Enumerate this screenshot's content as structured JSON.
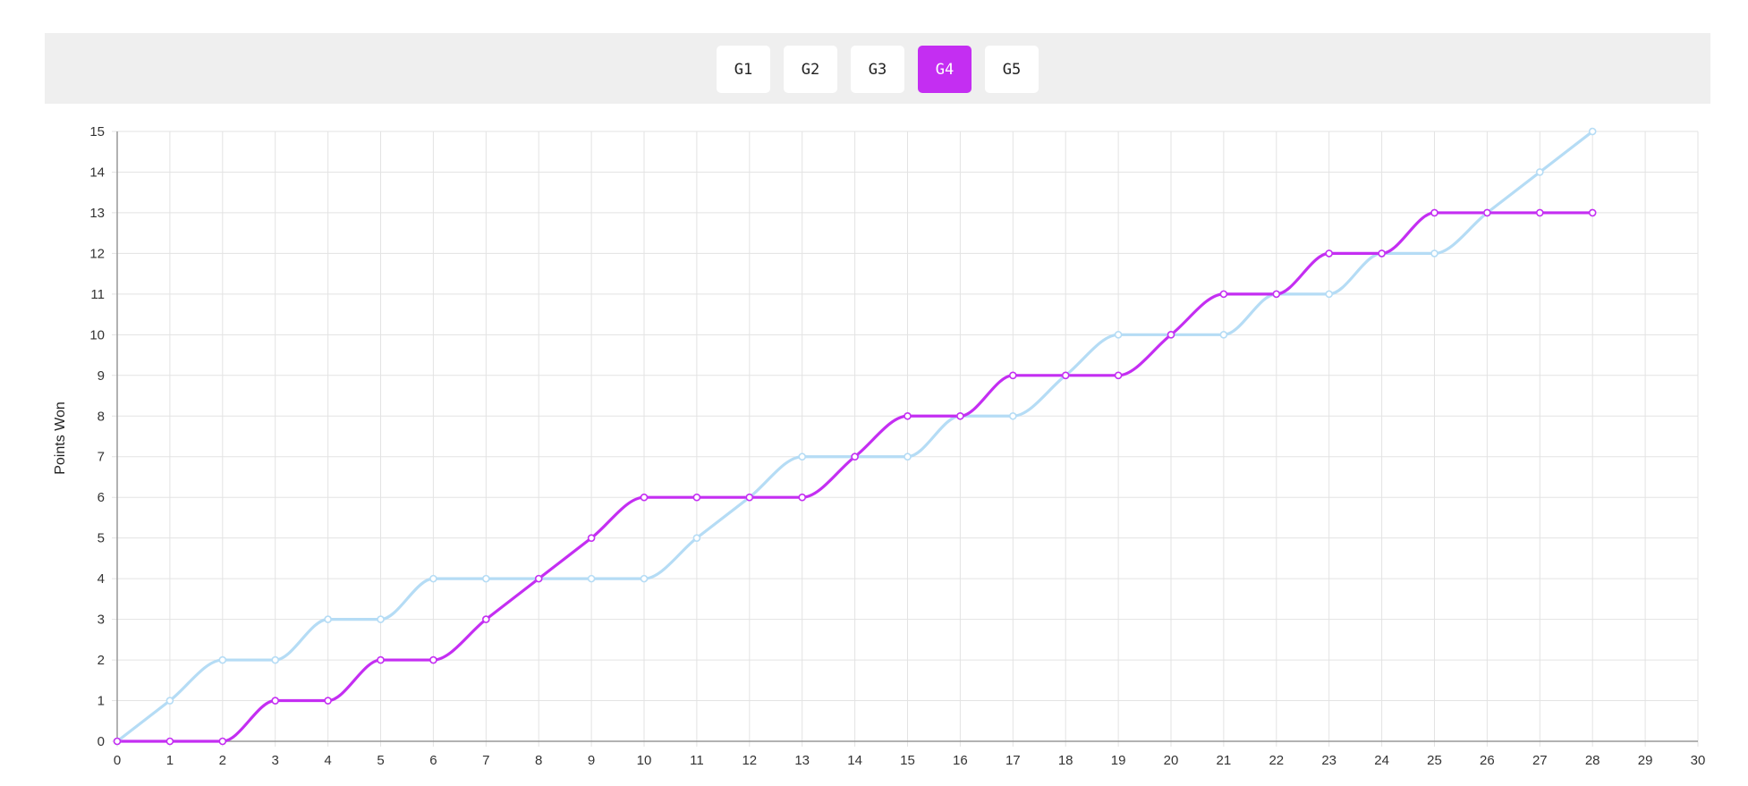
{
  "tabs": [
    {
      "label": "G1",
      "active": false
    },
    {
      "label": "G2",
      "active": false
    },
    {
      "label": "G3",
      "active": false
    },
    {
      "label": "G4",
      "active": true
    },
    {
      "label": "G5",
      "active": false
    }
  ],
  "colors": {
    "accent": "#c42ef2",
    "series_a": "#b5dcf5",
    "series_b": "#c42ef2",
    "grid": "#e3e3e3",
    "axis": "#999999"
  },
  "chart_data": {
    "type": "line",
    "xlabel": "",
    "ylabel": "Points Won",
    "xlim": [
      0,
      30
    ],
    "ylim": [
      0,
      15
    ],
    "xticks": [
      0,
      1,
      2,
      3,
      4,
      5,
      6,
      7,
      8,
      9,
      10,
      11,
      12,
      13,
      14,
      15,
      16,
      17,
      18,
      19,
      20,
      21,
      22,
      23,
      24,
      25,
      26,
      27,
      28,
      29,
      30
    ],
    "yticks": [
      0,
      1,
      2,
      3,
      4,
      5,
      6,
      7,
      8,
      9,
      10,
      11,
      12,
      13,
      14,
      15
    ],
    "grid": true,
    "x": [
      0,
      1,
      2,
      3,
      4,
      5,
      6,
      7,
      8,
      9,
      10,
      11,
      12,
      13,
      14,
      15,
      16,
      17,
      18,
      19,
      20,
      21,
      22,
      23,
      24,
      25,
      26,
      27,
      28
    ],
    "series": [
      {
        "color": "#b5dcf5",
        "values": [
          0,
          1,
          2,
          2,
          3,
          3,
          4,
          4,
          4,
          4,
          4,
          5,
          6,
          7,
          7,
          7,
          8,
          8,
          9,
          10,
          10,
          10,
          11,
          11,
          12,
          12,
          13,
          14,
          15
        ]
      },
      {
        "color": "#c42ef2",
        "values": [
          0,
          0,
          0,
          1,
          1,
          2,
          2,
          3,
          4,
          5,
          6,
          6,
          6,
          6,
          7,
          8,
          8,
          9,
          9,
          9,
          10,
          11,
          11,
          12,
          12,
          13,
          13,
          13,
          13
        ]
      }
    ]
  }
}
